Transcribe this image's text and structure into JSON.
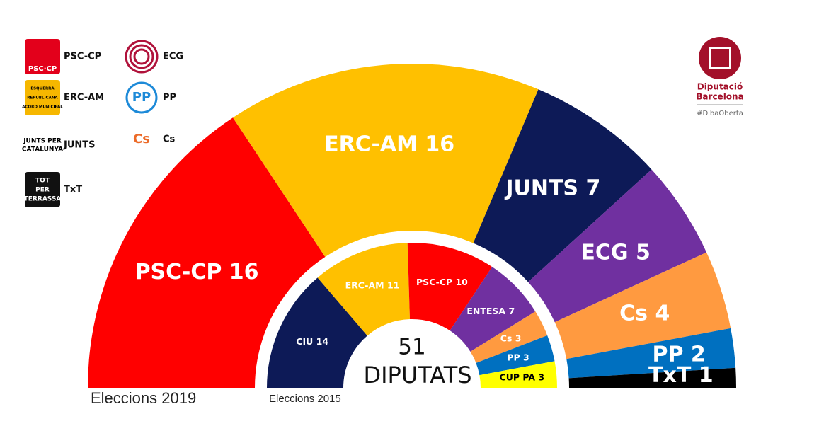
{
  "chart_data": [
    {
      "type": "parliament",
      "title": "Eleccions 2019",
      "categories": [
        "PSC-CP",
        "ERC-AM",
        "JUNTS",
        "ECG",
        "Cs",
        "PP",
        "TxT"
      ],
      "values": [
        16,
        16,
        7,
        5,
        4,
        2,
        1
      ],
      "colors": [
        "#ff0000",
        "#ffc000",
        "#0d1a57",
        "#7030a0",
        "#ff9a40",
        "#0070c0",
        "#000000"
      ]
    },
    {
      "type": "parliament",
      "title": "Eleccions 2015",
      "categories": [
        "CIU",
        "ERC-AM",
        "PSC-CP",
        "ENTESA",
        "Cs",
        "PP",
        "CUP PA"
      ],
      "values": [
        14,
        11,
        10,
        7,
        3,
        3,
        3
      ],
      "colors": [
        "#0d1a57",
        "#ffc000",
        "#ff0000",
        "#7030a0",
        "#ff9a40",
        "#0070c0",
        "#ffff00"
      ]
    }
  ],
  "center": {
    "total": 51,
    "label": "DIPUTATS"
  },
  "legend": [
    {
      "label": "PSC-CP",
      "logo": [
        "PSC·CP"
      ]
    },
    {
      "label": "ERC-AM",
      "logo": [
        "ESQUERRA",
        "REPUBLICANA",
        "ACORD MUNICIPAL"
      ]
    },
    {
      "label": "JUNTS",
      "logo": [
        "JUNTS PER",
        "CATALUNYA"
      ]
    },
    {
      "label": "TxT",
      "logo": [
        "TOT",
        "PER",
        "TERRASSA"
      ]
    },
    {
      "label": "ECG",
      "logo": []
    },
    {
      "label": "PP",
      "logo": [
        "PP"
      ]
    },
    {
      "label": "Cs",
      "logo": [
        "Cs"
      ]
    }
  ],
  "brand": {
    "line1": "Diputació",
    "line2": "Barcelona",
    "tag": "#DibaOberta"
  }
}
